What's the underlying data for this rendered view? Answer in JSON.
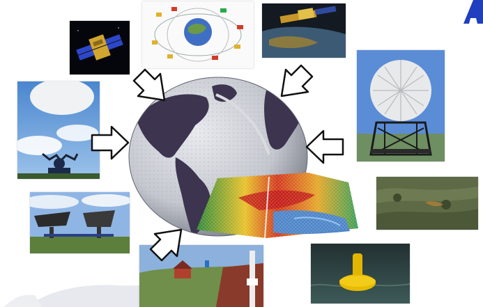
{
  "colors": {
    "accent": "#1f3fbf",
    "ocean": "#c9ccd3",
    "land": "#3d3450",
    "arrow_fill": "#ffffff",
    "arrow_stroke": "#111111"
  },
  "center": {
    "icon": "globe-icon",
    "overlay_icon": "terrain-model-icon"
  },
  "observations": [
    {
      "id": "satellite-polar",
      "icon": "satellite-icon"
    },
    {
      "id": "satellite-orbits-diagram",
      "icon": "orbit-diagram-icon"
    },
    {
      "id": "satellite-over-earth",
      "icon": "satellite-icon"
    },
    {
      "id": "weather-balloon",
      "icon": "balloon-icon"
    },
    {
      "id": "radar-dome",
      "icon": "radome-icon"
    },
    {
      "id": "aerial-landscape",
      "icon": "aerial-photo-icon"
    },
    {
      "id": "radio-telescopes",
      "icon": "antenna-icon"
    },
    {
      "id": "surface-station",
      "icon": "weather-station-icon"
    },
    {
      "id": "ocean-buoy",
      "icon": "buoy-icon"
    }
  ],
  "arrows": [
    {
      "id": "from-top-left",
      "icon": "arrow-icon"
    },
    {
      "id": "from-top-right",
      "icon": "arrow-icon"
    },
    {
      "id": "from-left",
      "icon": "arrow-icon"
    },
    {
      "id": "from-right",
      "icon": "arrow-icon"
    },
    {
      "id": "from-bottom-left",
      "icon": "arrow-icon"
    }
  ]
}
